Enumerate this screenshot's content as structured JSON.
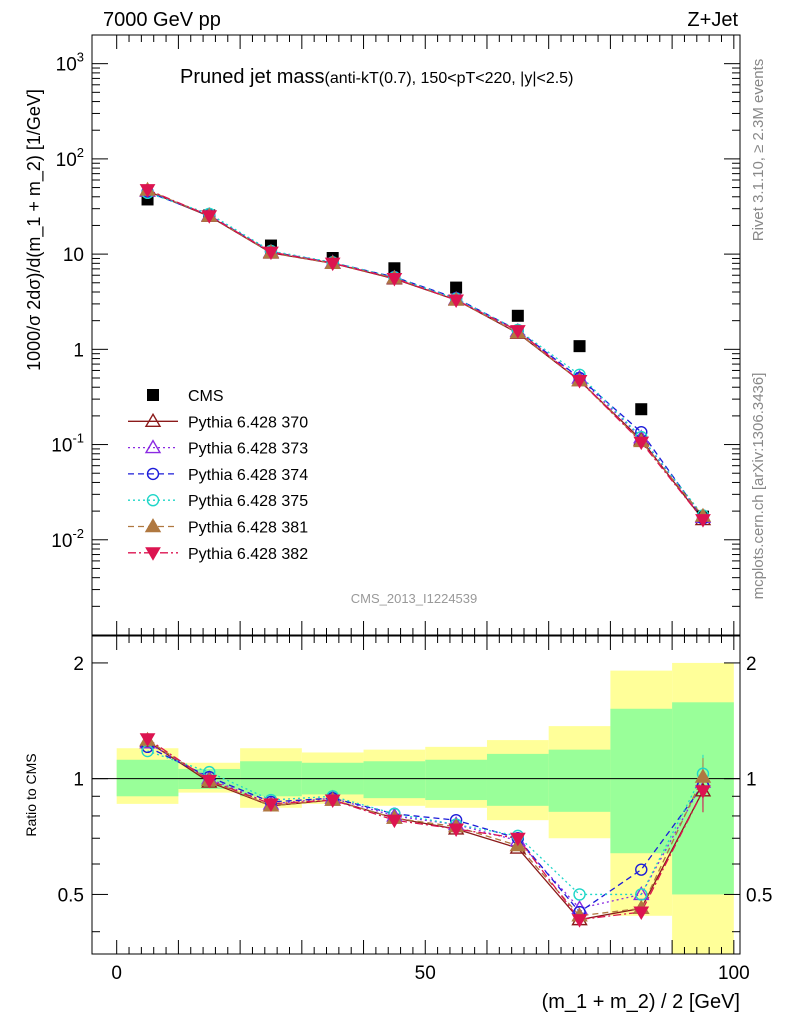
{
  "header": {
    "energy_label": "7000 GeV pp",
    "process_label": "Z+Jet"
  },
  "chart_data": [
    {
      "type": "scatter",
      "title": "Pruned jet mass",
      "subtitle": "(anti-kT(0.7), 150<pT<220, |y|<2.5)",
      "ylabel": "1000/σ 2dσ)/d(m_1 + m_2) [1/GeV]",
      "xlabel": "(m_1 + m_2) / 2 [GeV]",
      "xlim": [
        -4,
        101
      ],
      "ylim": [
        0.001,
        2000
      ],
      "yscale": "log",
      "yticks": [
        "10^-2",
        "10^-1",
        "1",
        "10",
        "10^2",
        "10^3"
      ],
      "side_labels": [
        "Rivet 3.1.10, ≥ 2.3M events",
        "mcplots.cern.ch [arXiv:1306.3436]"
      ],
      "analysis_label": "CMS_2013_I1224539",
      "legend_position": "middle-left",
      "x": [
        5,
        15,
        25,
        35,
        45,
        55,
        65,
        75,
        85,
        95
      ],
      "series": [
        {
          "name": "CMS",
          "color": "#000000",
          "marker": "square",
          "values": [
            37.5,
            25.5,
            12.3,
            9.1,
            7.1,
            4.45,
            2.25,
            1.08,
            0.235,
            0.0175
          ]
        },
        {
          "name": "Pythia 6.428 370",
          "color": "#8b1a1a",
          "marker": "triangle-open",
          "dash": "solid",
          "values": [
            46,
            25,
            10.3,
            8.0,
            5.5,
            3.3,
            1.48,
            0.47,
            0.112,
            0.0163
          ]
        },
        {
          "name": "Pythia 6.428 373",
          "color": "#8b2be2",
          "marker": "triangle-open",
          "dash": "dotted",
          "values": [
            46,
            25.5,
            10.5,
            8.1,
            5.6,
            3.35,
            1.55,
            0.5,
            0.118,
            0.0172
          ]
        },
        {
          "name": "Pythia 6.428 374",
          "color": "#1c1cd9",
          "marker": "circle-open",
          "dash": "dashed",
          "values": [
            45,
            25.5,
            10.6,
            8.1,
            5.75,
            3.45,
            1.58,
            0.5,
            0.135,
            0.0168
          ]
        },
        {
          "name": "Pythia 6.428 375",
          "color": "#1fd6c8",
          "marker": "circle-open",
          "dash": "dotted",
          "values": [
            44,
            26.5,
            10.8,
            8.2,
            5.7,
            3.4,
            1.6,
            0.54,
            0.12,
            0.018
          ]
        },
        {
          "name": "Pythia 6.428 381",
          "color": "#b07840",
          "marker": "triangle-filled",
          "dash": "dashed",
          "values": [
            47,
            25.2,
            10.4,
            8.0,
            5.6,
            3.3,
            1.5,
            0.47,
            0.108,
            0.0177
          ]
        },
        {
          "name": "Pythia 6.428 382",
          "color": "#dc1450",
          "marker": "triangle-down-filled",
          "dash": "dashdot",
          "values": [
            47.5,
            25.3,
            10.5,
            8.05,
            5.55,
            3.3,
            1.57,
            0.47,
            0.106,
            0.0163
          ]
        }
      ]
    },
    {
      "type": "scatter",
      "ylabel": "Ratio to CMS",
      "xlabel": "(m_1 + m_2) / 2 [GeV]",
      "xlim": [
        -4,
        101
      ],
      "ylim": [
        0.35,
        2.35
      ],
      "yscale": "log",
      "yticks": [
        "0.5",
        "1",
        "2"
      ],
      "xticks": [
        "0",
        "50",
        "100"
      ],
      "x": [
        5,
        15,
        25,
        35,
        45,
        55,
        65,
        75,
        85,
        95
      ],
      "uncertainty_band_inner": {
        "color": "#99ff99",
        "lo": [
          0.9,
          0.94,
          0.9,
          0.91,
          0.89,
          0.88,
          0.85,
          0.82,
          0.64,
          0.5
        ],
        "hi": [
          1.12,
          1.06,
          1.11,
          1.1,
          1.11,
          1.12,
          1.16,
          1.19,
          1.52,
          1.58
        ]
      },
      "uncertainty_band_outer": {
        "color": "#ffff99",
        "lo": [
          0.86,
          0.92,
          0.84,
          0.86,
          0.85,
          0.84,
          0.78,
          0.7,
          0.44,
          0.35
        ],
        "hi": [
          1.2,
          1.1,
          1.2,
          1.17,
          1.19,
          1.21,
          1.26,
          1.37,
          1.91,
          2.0
        ]
      },
      "series": [
        {
          "name": "Pythia 6.428 370",
          "color": "#8b1a1a",
          "marker": "triangle-open",
          "dash": "solid",
          "values": [
            1.25,
            0.98,
            0.85,
            0.88,
            0.79,
            0.74,
            0.66,
            0.43,
            0.46,
            0.93
          ]
        },
        {
          "name": "Pythia 6.428 373",
          "color": "#8b2be2",
          "marker": "triangle-open",
          "dash": "dotted",
          "values": [
            1.24,
            1.0,
            0.86,
            0.89,
            0.8,
            0.76,
            0.69,
            0.46,
            0.5,
            0.98
          ]
        },
        {
          "name": "Pythia 6.428 374",
          "color": "#1c1cd9",
          "marker": "circle-open",
          "dash": "dashed",
          "values": [
            1.21,
            1.01,
            0.87,
            0.89,
            0.81,
            0.78,
            0.7,
            0.45,
            0.58,
            0.96
          ]
        },
        {
          "name": "Pythia 6.428 375",
          "color": "#1fd6c8",
          "marker": "circle-open",
          "dash": "dotted",
          "values": [
            1.18,
            1.04,
            0.88,
            0.9,
            0.81,
            0.76,
            0.71,
            0.5,
            0.5,
            1.03
          ]
        },
        {
          "name": "Pythia 6.428 381",
          "color": "#b07840",
          "marker": "triangle-filled",
          "dash": "dashed",
          "values": [
            1.26,
            0.99,
            0.85,
            0.88,
            0.79,
            0.75,
            0.67,
            0.44,
            0.46,
            1.01
          ]
        },
        {
          "name": "Pythia 6.428 382",
          "color": "#dc1450",
          "marker": "triangle-down-filled",
          "dash": "dashdot",
          "values": [
            1.27,
            0.99,
            0.86,
            0.88,
            0.78,
            0.74,
            0.7,
            0.43,
            0.45,
            0.93
          ]
        }
      ]
    }
  ]
}
